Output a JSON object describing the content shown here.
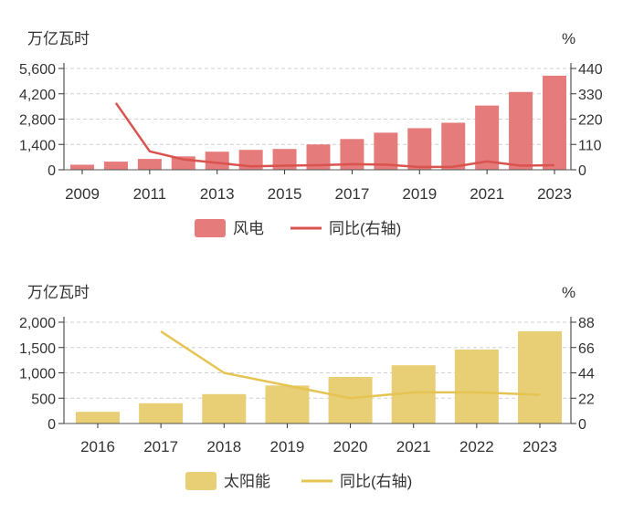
{
  "chart_data": [
    {
      "type": "bar",
      "left_unit": "万亿瓦时",
      "right_unit": "%",
      "x": [
        2009,
        2010,
        2011,
        2012,
        2013,
        2014,
        2015,
        2016,
        2017,
        2018,
        2019,
        2020,
        2021,
        2022,
        2023
      ],
      "x_tick_labels": [
        "2009",
        "2011",
        "2013",
        "2015",
        "2017",
        "2019",
        "2021",
        "2023"
      ],
      "ylim": [
        0,
        5600
      ],
      "y_ticks": [
        "0",
        "1,400",
        "2,800",
        "4,200",
        "5,600"
      ],
      "y2lim": [
        0,
        440
      ],
      "y2_ticks": [
        "0",
        "110",
        "220",
        "330",
        "440"
      ],
      "grid": true,
      "legend_position": "bottom",
      "series": [
        {
          "name": "风电",
          "kind": "bar",
          "axis": "left",
          "color": "#e57b7b",
          "values": [
            280,
            450,
            600,
            740,
            1000,
            1100,
            1150,
            1400,
            1700,
            2050,
            2300,
            2600,
            3550,
            4300,
            5200
          ]
        },
        {
          "name": "同比(右轴)",
          "kind": "line",
          "axis": "right",
          "color": "#d9534f",
          "values": [
            null,
            290,
            80,
            45,
            30,
            15,
            18,
            20,
            24,
            22,
            12,
            13,
            36,
            18,
            20
          ]
        }
      ]
    },
    {
      "type": "bar",
      "left_unit": "万亿瓦时",
      "right_unit": "%",
      "x": [
        2016,
        2017,
        2018,
        2019,
        2020,
        2021,
        2022,
        2023
      ],
      "x_tick_labels": [
        "2016",
        "2017",
        "2018",
        "2019",
        "2020",
        "2021",
        "2022",
        "2023"
      ],
      "ylim": [
        0,
        2000
      ],
      "y_ticks": [
        "0",
        "500",
        "1,000",
        "1,500",
        "2,000"
      ],
      "y2lim": [
        0,
        88
      ],
      "y2_ticks": [
        "0",
        "22",
        "44",
        "66",
        "88"
      ],
      "grid": true,
      "legend_position": "bottom",
      "series": [
        {
          "name": "太阳能",
          "kind": "bar",
          "axis": "left",
          "color": "#e8ce74",
          "values": [
            230,
            400,
            580,
            750,
            920,
            1150,
            1460,
            1820
          ]
        },
        {
          "name": "同比(右轴)",
          "kind": "line",
          "axis": "right",
          "color": "#e5c453",
          "values": [
            null,
            80,
            44,
            33,
            22,
            27,
            27,
            25
          ]
        }
      ]
    }
  ]
}
